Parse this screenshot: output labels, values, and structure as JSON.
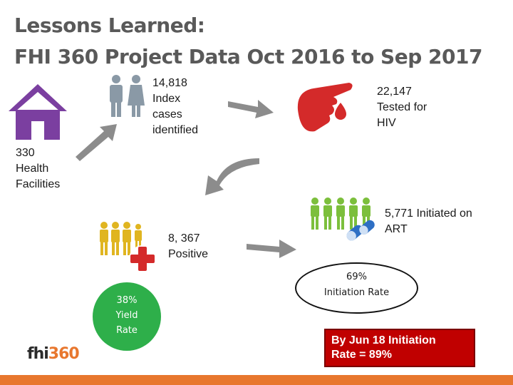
{
  "title": {
    "line1": "Lessons Learned:",
    "line2": "FHI 360 Project Data Oct 2016 to Sep 2017"
  },
  "steps": {
    "facilities": [
      "330",
      "Health",
      "Facilities"
    ],
    "index": [
      "14,818",
      "Index",
      "cases",
      "identified"
    ],
    "tested": [
      "22,147",
      "Tested for",
      "HIV"
    ],
    "positive": [
      "8, 367",
      "Positive"
    ],
    "initiated": [
      "5,771 Initiated on",
      "ART"
    ]
  },
  "yield": [
    "38%",
    "Yield",
    "Rate"
  ],
  "initiation": [
    "69%",
    "Initiation Rate"
  ],
  "callout": [
    "By Jun 18 Initiation",
    "Rate = 89%"
  ],
  "logo": {
    "fhi": "fhi",
    "num": "360"
  },
  "colors": {
    "house": "#7b3fa0",
    "people_grey": "#8a99a6",
    "people_yellow": "#e0b520",
    "people_green": "#7cbf3c",
    "red": "#d42a2a",
    "green_circle": "#2eaf4a",
    "orange_bar": "#e8772e",
    "arrow_grey": "#8c8c8c"
  },
  "icons": [
    "house-icon",
    "couple-icon",
    "finger-blood-icon",
    "family-icon",
    "medical-cross-icon",
    "group-icon",
    "pills-icon"
  ]
}
